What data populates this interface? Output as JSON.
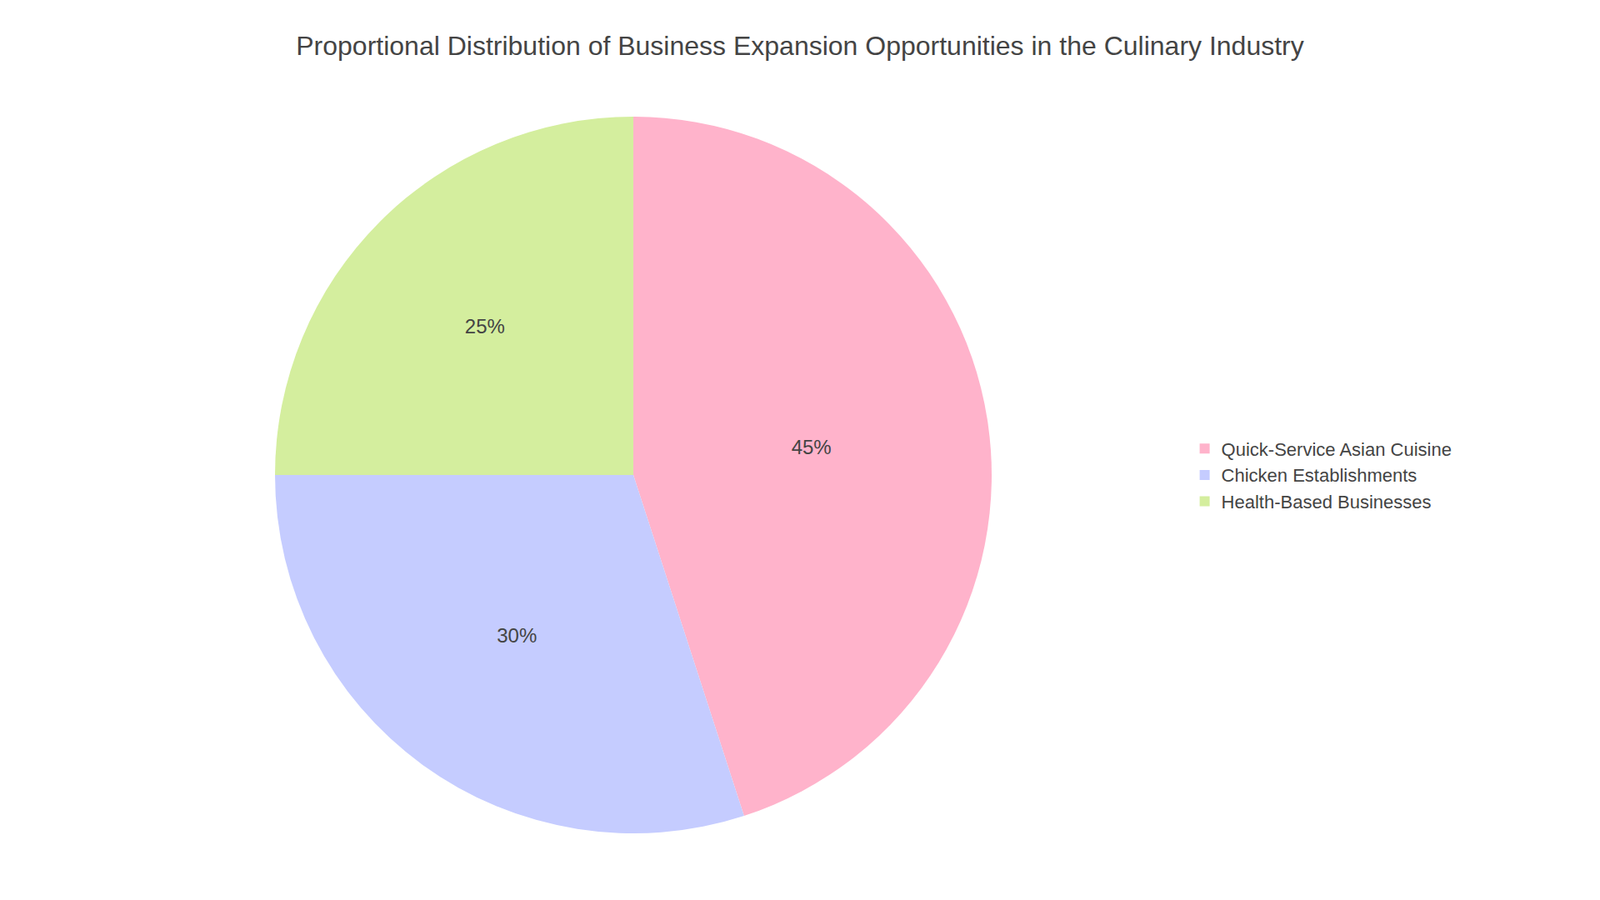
{
  "chart_data": {
    "type": "pie",
    "title": "Proportional Distribution of Business Expansion Opportunities in the Culinary Industry",
    "categories": [
      "Quick-Service Asian Cuisine",
      "Chicken Establishments",
      "Health-Based Businesses"
    ],
    "values": [
      45,
      30,
      25
    ],
    "value_labels": [
      "45%",
      "30%",
      "25%"
    ],
    "colors": [
      "#FFB3CB",
      "#C5CCFF",
      "#D4EE9E"
    ],
    "data_labels": true,
    "legend": "right"
  }
}
